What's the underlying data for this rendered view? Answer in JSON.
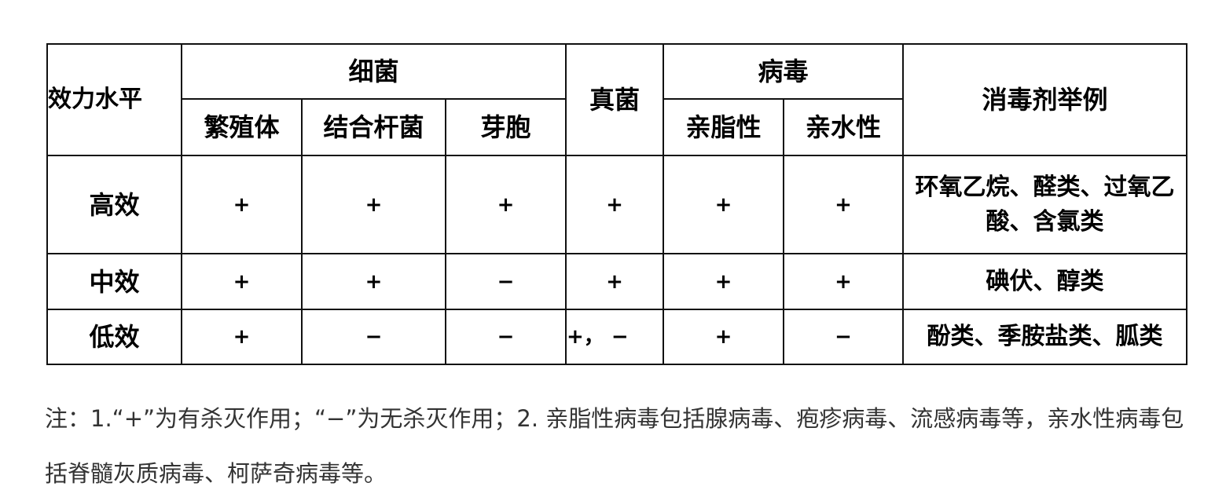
{
  "table": {
    "header": {
      "level": "效力水平",
      "bacteria": "细菌",
      "vegetative": "繁殖体",
      "mycobacterium": "结合杆菌",
      "spore": "芽胞",
      "fungi": "真菌",
      "virus": "病毒",
      "lipophilic": "亲脂性",
      "hydrophilic": "亲水性",
      "examples": "消毒剂举例"
    },
    "rows": [
      {
        "level": "高效",
        "cells": [
          "+",
          "+",
          "+",
          "+",
          "+",
          "+"
        ],
        "examples": "环氧乙烷、醛类、过氧乙酸、含氯类"
      },
      {
        "level": "中效",
        "cells": [
          "+",
          "+",
          "−",
          "+",
          "+",
          "+"
        ],
        "examples": "碘伏、醇类"
      },
      {
        "level": "低效",
        "cells": [
          "+",
          "−",
          "−",
          "+， −",
          "+",
          "−"
        ],
        "examples": "酚类、季胺盐类、胍类"
      }
    ]
  },
  "note": "注：1.“+”为有杀灭作用；“−”为无杀灭作用；2. 亲脂性病毒包括腺病毒、疱疹病毒、流感病毒等，亲水性病毒包括脊髓灰质病毒、柯萨奇病毒等。"
}
